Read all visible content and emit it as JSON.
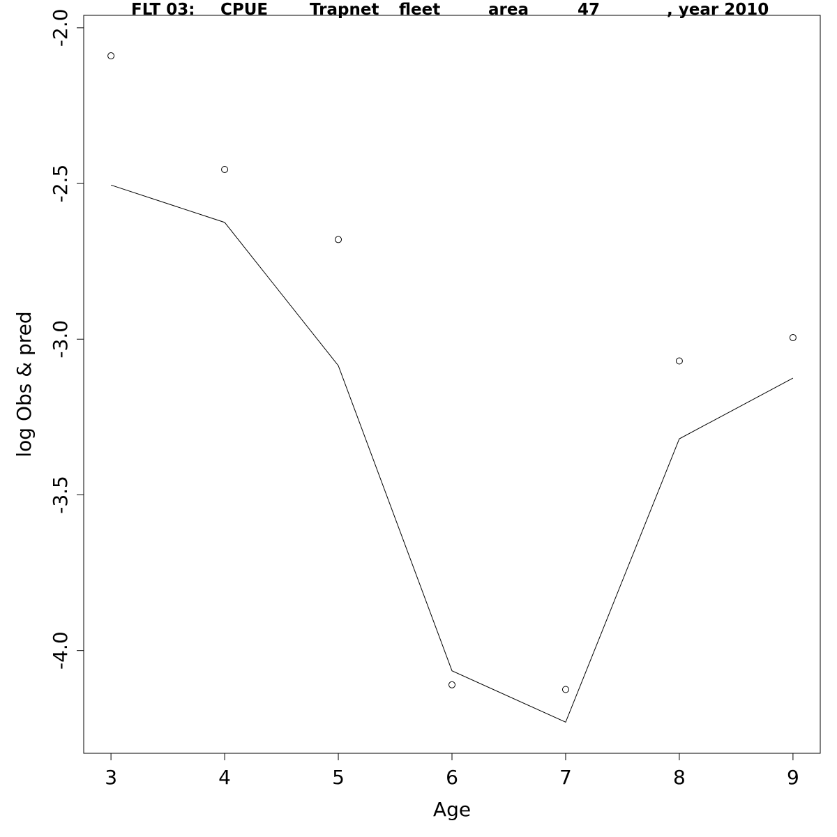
{
  "chart_data": {
    "type": "line",
    "title_parts": [
      "FLT 03:",
      "CPUE",
      "Trapnet",
      "fleet",
      "area",
      "47",
      ", year 2010"
    ],
    "xlabel": "Age",
    "ylabel": "log Obs & pred",
    "x": [
      3,
      4,
      5,
      6,
      7,
      8,
      9
    ],
    "xlim": [
      2.76,
      9.24
    ],
    "ylim": [
      -4.33,
      -1.96
    ],
    "x_ticks": [
      3,
      4,
      5,
      6,
      7,
      8,
      9
    ],
    "y_ticks": [
      -2.0,
      -2.5,
      -3.0,
      -3.5,
      -4.0
    ],
    "y_tick_labels": [
      "-2.0",
      "-2.5",
      "-3.0",
      "-3.5",
      "-4.0"
    ],
    "observed": [
      -2.09,
      -2.455,
      -2.68,
      -4.11,
      -4.125,
      -3.07,
      -2.995
    ],
    "predicted": [
      -2.505,
      -2.625,
      -3.085,
      -4.065,
      -4.23,
      -3.32,
      -3.125
    ],
    "grid": false,
    "legend": "none"
  }
}
